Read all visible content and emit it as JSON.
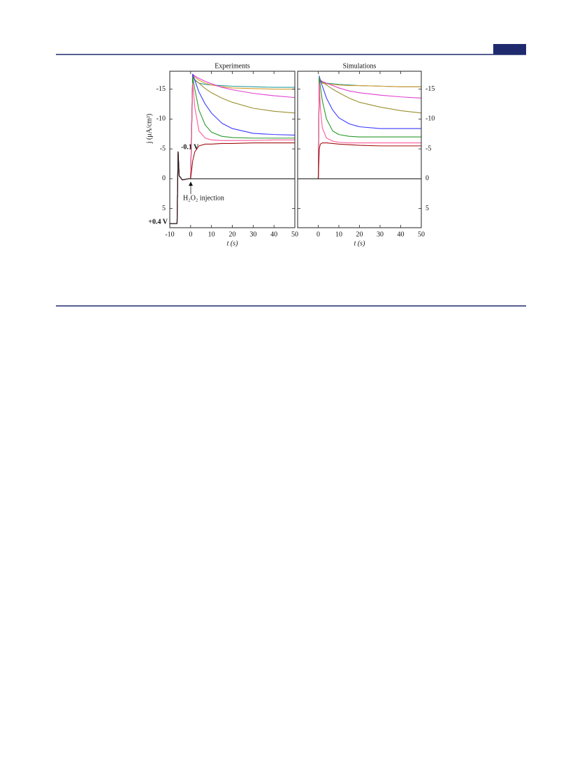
{
  "chart_data": [
    {
      "type": "line",
      "title": "Experiments",
      "x_label": "t (s)",
      "y_label": "j (μA/cm²)",
      "x": [
        -10,
        -6.5,
        -6,
        -5.5,
        -4,
        -1,
        0,
        1,
        2,
        4,
        7,
        10,
        15,
        20,
        30,
        40,
        50
      ],
      "xlim": [
        -10,
        50
      ],
      "xticks": [
        -10,
        0,
        10,
        20,
        30,
        40,
        50
      ],
      "ylim": [
        -18,
        8.2
      ],
      "yticks": [
        -15,
        -10,
        -5,
        0,
        5
      ],
      "y_reversed": true,
      "y_axis_side": "left",
      "series": [
        {
          "color": "#2a9d9d",
          "values": [
            7.5,
            7.5,
            -4.5,
            -0.5,
            0.2,
            0,
            0,
            -17,
            -16.5,
            -16,
            -15.8,
            -15.7,
            -15.6,
            -15.5,
            -15.4,
            -15.3,
            -15.3
          ]
        },
        {
          "color": "#d99a2b",
          "values": [
            7.5,
            7.5,
            -4.5,
            -0.5,
            0.2,
            0,
            0,
            -17.5,
            -17,
            -16.5,
            -16,
            -15.7,
            -15.4,
            -15.2,
            -15.1,
            -15,
            -15
          ]
        },
        {
          "color": "#e040d0",
          "values": [
            7.5,
            7.5,
            -4.5,
            -0.5,
            0.2,
            0,
            0,
            -17.5,
            -17.2,
            -16.8,
            -16.3,
            -15.9,
            -15.3,
            -14.9,
            -14.3,
            -13.9,
            -13.6
          ]
        },
        {
          "color": "#9a9030",
          "values": [
            7.5,
            7.5,
            -4.5,
            -0.5,
            0.2,
            0,
            0,
            -17,
            -16.6,
            -16,
            -15.1,
            -14.4,
            -13.5,
            -12.8,
            -11.8,
            -11.3,
            -11
          ]
        },
        {
          "color": "#3a3aff",
          "values": [
            7.5,
            7.5,
            -4.5,
            -0.5,
            0.2,
            0,
            0,
            -17.5,
            -16.5,
            -14.5,
            -12.5,
            -11,
            -9.3,
            -8.4,
            -7.6,
            -7.4,
            -7.3
          ]
        },
        {
          "color": "#2a9a2a",
          "values": [
            7.5,
            7.5,
            -4.5,
            -0.5,
            0.2,
            0,
            0,
            -17,
            -15,
            -11.5,
            -9,
            -7.8,
            -7.1,
            -6.9,
            -6.8,
            -6.8,
            -6.8
          ]
        },
        {
          "color": "#ff5a9a",
          "values": [
            7.5,
            7.5,
            -4.5,
            -0.5,
            0.2,
            0,
            0,
            -16,
            -12,
            -8,
            -6.8,
            -6.5,
            -6.4,
            -6.4,
            -6.4,
            -6.5,
            -6.5
          ]
        },
        {
          "color": "#a01010",
          "values": [
            7.5,
            7.5,
            -4.5,
            -0.5,
            0.2,
            0,
            0,
            -3,
            -4.5,
            -5.5,
            -5.8,
            -5.8,
            -5.9,
            -5.9,
            -6,
            -6,
            -6
          ]
        },
        {
          "color": "#222222",
          "values": [
            7.5,
            7.5,
            -4.5,
            -0.5,
            0.2,
            0,
            0,
            0,
            0,
            0,
            0,
            0,
            0,
            0,
            0,
            0,
            0
          ]
        }
      ],
      "annotations": [
        {
          "text": "-0.1 V",
          "color": "#a01010"
        },
        {
          "text": "+0.4 V",
          "color": "#1a8a1a"
        },
        {
          "text": "H₂O₂ injection",
          "color": "#111111"
        }
      ]
    },
    {
      "type": "line",
      "title": "Simulations",
      "x_label": "t (s)",
      "x": [
        -10,
        0,
        0.5,
        1,
        2,
        4,
        7,
        10,
        15,
        20,
        30,
        40,
        50
      ],
      "xlim": [
        -10,
        50
      ],
      "xticks": [
        0,
        10,
        20,
        30,
        40,
        50
      ],
      "ylim": [
        -18,
        8.2
      ],
      "yticks": [
        -15,
        -10,
        -5,
        0,
        5
      ],
      "y_reversed": true,
      "y_axis_side": "right",
      "series": [
        {
          "color": "#2a9d9d",
          "values": [
            null,
            0,
            -17,
            -16.3,
            -16.1,
            -16,
            -15.9,
            -15.8,
            -15.7,
            -15.6,
            -15.5,
            -15.4,
            -15.4
          ]
        },
        {
          "color": "#d99a2b",
          "values": [
            null,
            0,
            -17,
            -16.2,
            -16,
            -15.9,
            -15.8,
            -15.7,
            -15.6,
            -15.6,
            -15.5,
            -15.4,
            -15.4
          ]
        },
        {
          "color": "#e040d0",
          "values": [
            null,
            0,
            -17,
            -16.5,
            -16.3,
            -16,
            -15.6,
            -15.2,
            -14.7,
            -14.4,
            -14,
            -13.7,
            -13.5
          ]
        },
        {
          "color": "#9a9030",
          "values": [
            null,
            0,
            -17,
            -16.5,
            -16.2,
            -15.7,
            -15,
            -14.4,
            -13.5,
            -12.8,
            -12,
            -11.4,
            -11
          ]
        },
        {
          "color": "#3a3aff",
          "values": [
            null,
            0,
            -17.2,
            -16.5,
            -15.5,
            -13.5,
            -11.5,
            -10.2,
            -9.2,
            -8.7,
            -8.4,
            -8.4,
            -8.4
          ]
        },
        {
          "color": "#2a9a2a",
          "values": [
            null,
            0,
            -17,
            -15.5,
            -13,
            -10,
            -8,
            -7.4,
            -7.1,
            -7,
            -7,
            -7,
            -7
          ]
        },
        {
          "color": "#ff5a9a",
          "values": [
            null,
            0,
            -16,
            -12,
            -8.5,
            -6.8,
            -6.3,
            -6.1,
            -6,
            -6,
            -6,
            -6,
            -6
          ]
        },
        {
          "color": "#a01010",
          "values": [
            null,
            0,
            -5,
            -5.8,
            -6,
            -6,
            -5.9,
            -5.8,
            -5.7,
            -5.6,
            -5.5,
            -5.5,
            -5.5
          ]
        },
        {
          "color": "#222222",
          "values": [
            0,
            0,
            0,
            0,
            0,
            0,
            0,
            0,
            0,
            0,
            0,
            0,
            0
          ]
        }
      ]
    }
  ]
}
